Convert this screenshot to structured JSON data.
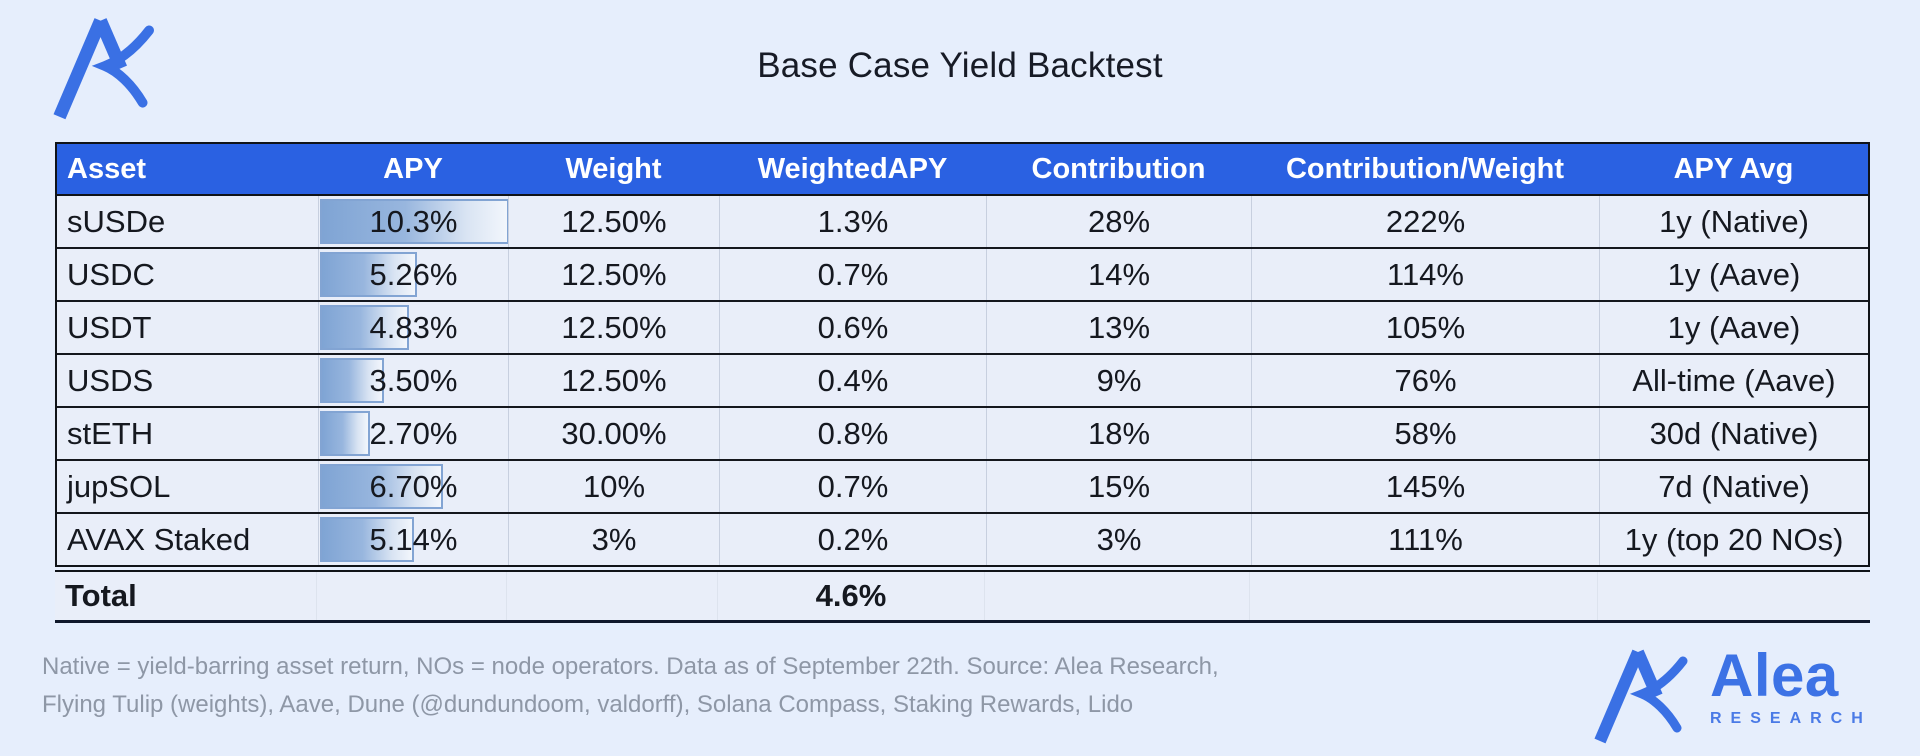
{
  "page": {
    "title": "Base Case Yield Backtest",
    "background_color": "#e6eefc"
  },
  "brand": {
    "name": "Alea",
    "subtitle": "RESEARCH",
    "blue": "#3c72e5",
    "logo_icon": "alea-ax-mark"
  },
  "table": {
    "header_bg": "#2a61e2",
    "databar_color": "#7fa4d4",
    "columns": [
      "Asset",
      "APY",
      "Weight",
      "WeightedAPY",
      "Contribution",
      "Contribution/Weight",
      "APY Avg"
    ],
    "rows": [
      {
        "asset": "sUSDe",
        "apy": "10.3%",
        "apy_value": 10.3,
        "weight": "12.50%",
        "weighted_apy": "1.3%",
        "contribution": "28%",
        "contribution_weight": "222%",
        "apy_avg": "1y (Native)"
      },
      {
        "asset": "USDC",
        "apy": "5.26%",
        "apy_value": 5.26,
        "weight": "12.50%",
        "weighted_apy": "0.7%",
        "contribution": "14%",
        "contribution_weight": "114%",
        "apy_avg": "1y (Aave)"
      },
      {
        "asset": "USDT",
        "apy": "4.83%",
        "apy_value": 4.83,
        "weight": "12.50%",
        "weighted_apy": "0.6%",
        "contribution": "13%",
        "contribution_weight": "105%",
        "apy_avg": "1y (Aave)"
      },
      {
        "asset": "USDS",
        "apy": "3.50%",
        "apy_value": 3.5,
        "weight": "12.50%",
        "weighted_apy": "0.4%",
        "contribution": "9%",
        "contribution_weight": "76%",
        "apy_avg": "All-time (Aave)"
      },
      {
        "asset": "stETH",
        "apy": "2.70%",
        "apy_value": 2.7,
        "weight": "30.00%",
        "weighted_apy": "0.8%",
        "contribution": "18%",
        "contribution_weight": "58%",
        "apy_avg": "30d (Native)"
      },
      {
        "asset": "jupSOL",
        "apy": "6.70%",
        "apy_value": 6.7,
        "weight": "10%",
        "weighted_apy": "0.7%",
        "contribution": "15%",
        "contribution_weight": "145%",
        "apy_avg": "7d (Native)"
      },
      {
        "asset": "AVAX Staked",
        "apy": "5.14%",
        "apy_value": 5.14,
        "weight": "3%",
        "weighted_apy": "0.2%",
        "contribution": "3%",
        "contribution_weight": "111%",
        "apy_avg": "1y (top 20 NOs)"
      }
    ],
    "total": {
      "label": "Total",
      "weighted_apy": "4.6%"
    }
  },
  "footnote": {
    "line1": "Native = yield-barring asset return, NOs = node operators. Data as of September 22th. Source: Alea Research,",
    "line2": "Flying Tulip (weights), Aave, Dune (@dundundoom, valdorff), Solana Compass, Staking Rewards, Lido"
  },
  "chart_data": {
    "type": "table",
    "title": "Base Case Yield Backtest",
    "columns": [
      "Asset",
      "APY",
      "Weight",
      "WeightedAPY",
      "Contribution",
      "Contribution/Weight",
      "APY Avg"
    ],
    "rows": [
      [
        "sUSDe",
        "10.3%",
        "12.50%",
        "1.3%",
        "28%",
        "222%",
        "1y (Native)"
      ],
      [
        "USDC",
        "5.26%",
        "12.50%",
        "0.7%",
        "14%",
        "114%",
        "1y (Aave)"
      ],
      [
        "USDT",
        "4.83%",
        "12.50%",
        "0.6%",
        "13%",
        "105%",
        "1y (Aave)"
      ],
      [
        "USDS",
        "3.50%",
        "12.50%",
        "0.4%",
        "9%",
        "76%",
        "All-time (Aave)"
      ],
      [
        "stETH",
        "2.70%",
        "30.00%",
        "0.8%",
        "18%",
        "58%",
        "30d (Native)"
      ],
      [
        "jupSOL",
        "6.70%",
        "10%",
        "0.7%",
        "15%",
        "145%",
        "7d (Native)"
      ],
      [
        "AVAX Staked",
        "5.14%",
        "3%",
        "0.2%",
        "3%",
        "111%",
        "1y (top 20 NOs)"
      ]
    ],
    "total_row": {
      "Asset": "Total",
      "WeightedAPY": "4.6%"
    },
    "apy_databar": {
      "style": "gradient-data-bar",
      "max": 10.3,
      "values": [
        10.3,
        5.26,
        4.83,
        3.5,
        2.7,
        6.7,
        5.14
      ]
    }
  }
}
